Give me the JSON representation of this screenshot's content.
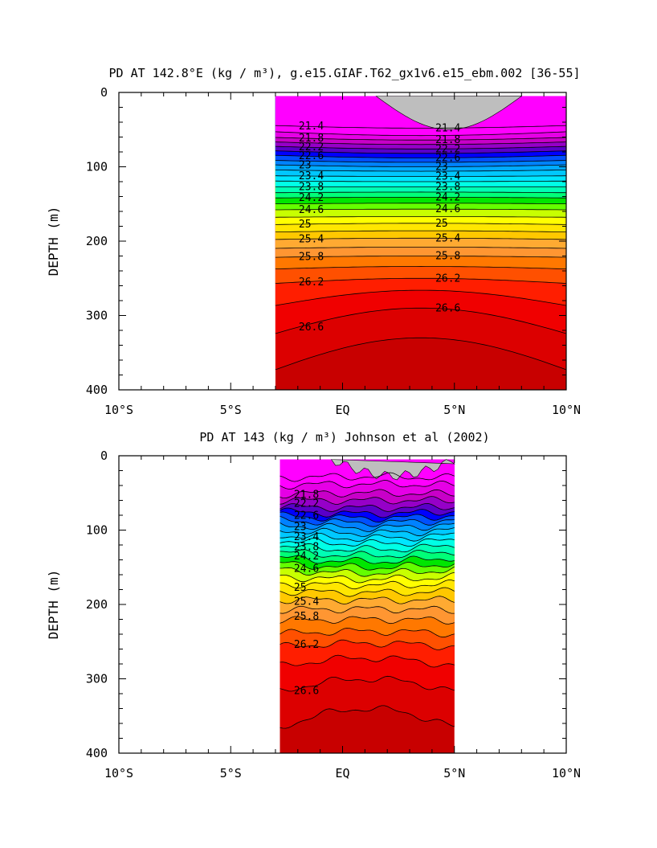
{
  "chart_data": [
    {
      "type": "contour",
      "title": "PD AT 142.8°E (kg / m³), g.e15.GIAF.T62_gx1v6.e15_ebm.002 [36-55]",
      "ylabel": "DEPTH (m)",
      "xlim": [
        -10,
        10
      ],
      "ylim": [
        400,
        0
      ],
      "x_ticks": [
        -10,
        -5,
        0,
        5,
        10
      ],
      "x_tick_labels": [
        "10°S",
        "5°S",
        "EQ",
        "5°N",
        "10°N"
      ],
      "y_ticks": [
        0,
        100,
        200,
        300,
        400
      ],
      "y_tick_labels": [
        "0",
        "100",
        "200",
        "300",
        "400"
      ],
      "data_x_range": [
        -3,
        10
      ],
      "data_y_top": 5,
      "masked_region": {
        "x": [
          1.5,
          8
        ],
        "note": "gray, density below lowest level"
      },
      "contour_levels": [
        21.4,
        21.6,
        21.8,
        22.0,
        22.2,
        22.4,
        22.6,
        22.8,
        23.0,
        23.2,
        23.4,
        23.6,
        23.8,
        24.0,
        24.2,
        24.4,
        24.6,
        24.8,
        25.0,
        25.2,
        25.4,
        25.6,
        25.8,
        26.0,
        26.2,
        26.4,
        26.6,
        26.8
      ],
      "level_depths_at_left": [
        44,
        52,
        60,
        66,
        72,
        78,
        84,
        91,
        97,
        104,
        112,
        119,
        127,
        135,
        142,
        150,
        158,
        168,
        178,
        188,
        198,
        210,
        222,
        238,
        258,
        290,
        330,
        380
      ],
      "level_depths_at_center": [
        48,
        58,
        64,
        70,
        76,
        82,
        88,
        94,
        100,
        106,
        113,
        120,
        127,
        134,
        141,
        149,
        157,
        167,
        176,
        186,
        196,
        208,
        220,
        234,
        250,
        266,
        290,
        330
      ],
      "labeled_values": [
        "21.4",
        "21.8",
        "22.2",
        "22.6",
        "23",
        "23.4",
        "23.8",
        "24.2",
        "24.6",
        "25",
        "25.4",
        "25.8",
        "26.2",
        "26.6"
      ]
    },
    {
      "type": "contour",
      "title": "PD AT 143 (kg / m³) Johnson et al (2002)",
      "ylabel": "DEPTH (m)",
      "xlim": [
        -10,
        10
      ],
      "ylim": [
        400,
        0
      ],
      "x_ticks": [
        -10,
        -5,
        0,
        5,
        10
      ],
      "x_tick_labels": [
        "10°S",
        "5°S",
        "EQ",
        "5°N",
        "10°N"
      ],
      "y_ticks": [
        0,
        100,
        200,
        300,
        400
      ],
      "y_tick_labels": [
        "0",
        "100",
        "200",
        "300",
        "400"
      ],
      "data_x_range": [
        -2.8,
        5
      ],
      "data_y_top": 5,
      "masked_region": {
        "x": [
          -0.5,
          5
        ],
        "note": "gray, density below lowest level"
      },
      "contour_levels": [
        21.4,
        21.6,
        21.8,
        22.0,
        22.2,
        22.4,
        22.6,
        22.8,
        23.0,
        23.2,
        23.4,
        23.6,
        23.8,
        24.0,
        24.2,
        24.4,
        24.6,
        24.8,
        25.0,
        25.2,
        25.4,
        25.6,
        25.8,
        26.0,
        26.2,
        26.4,
        26.6,
        26.8
      ],
      "level_depths_at_left": [
        30,
        40,
        52,
        60,
        68,
        74,
        80,
        86,
        92,
        99,
        106,
        113,
        120,
        128,
        136,
        144,
        152,
        162,
        172,
        182,
        194,
        208,
        222,
        240,
        258,
        285,
        320,
        370
      ],
      "level_depths_at_center": [
        28,
        38,
        50,
        60,
        70,
        78,
        84,
        90,
        97,
        104,
        111,
        118,
        126,
        134,
        142,
        150,
        158,
        166,
        174,
        184,
        194,
        206,
        220,
        236,
        252,
        272,
        300,
        340
      ],
      "labeled_values": [
        "21.8",
        "22.2",
        "22.6",
        "23",
        "23.4",
        "23.8",
        "24.2",
        "24.6",
        "25",
        "25.4",
        "25.8",
        "26.2",
        "26.6"
      ]
    }
  ],
  "colors": {
    "mask": "#bebebe",
    "contour_line": "#000000",
    "palette": [
      "#ff00ff",
      "#e600e6",
      "#c800c8",
      "#9600c8",
      "#5a00c8",
      "#0000ff",
      "#0050ff",
      "#0082ff",
      "#00aaff",
      "#00c8ff",
      "#00e6ff",
      "#00ffe6",
      "#00ffb4",
      "#00ff78",
      "#00e600",
      "#64ff00",
      "#c8ff00",
      "#ffff00",
      "#ffe600",
      "#ffc800",
      "#ffaa32",
      "#ff9632",
      "#ff7800",
      "#ff5000",
      "#ff1e00",
      "#f00000",
      "#dc0000",
      "#c80000"
    ]
  }
}
